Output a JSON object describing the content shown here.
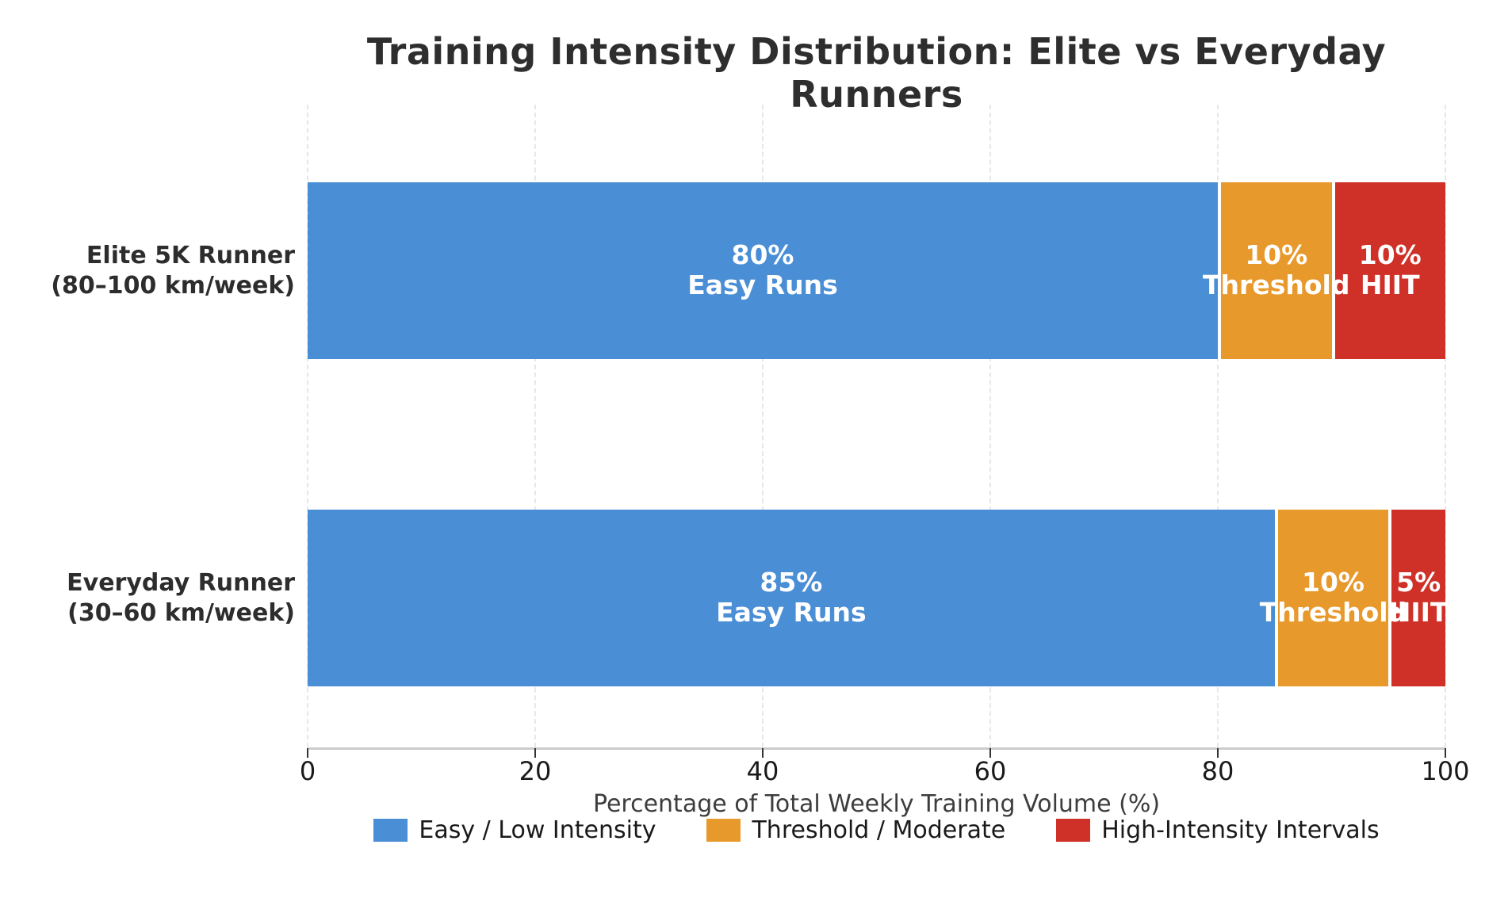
{
  "chart_data": {
    "type": "bar",
    "orientation": "horizontal",
    "stacked": true,
    "title": "Training Intensity Distribution: Elite vs Everyday Runners",
    "xlabel": "Percentage of Total Weekly Training Volume (%)",
    "xlim": [
      0,
      100
    ],
    "xticks": [
      0,
      20,
      40,
      60,
      80,
      100
    ],
    "grid": {
      "axis": "x",
      "style": "dashed",
      "color": "#e7e7e7"
    },
    "legend_position": "bottom",
    "background_color": "#ffffff",
    "categories": [
      "Elite 5K Runner (80–100 km/week)",
      "Everyday Runner (30–60 km/week)"
    ],
    "category_label_lines": [
      [
        "Elite 5K Runner",
        "(80–100 km/week)"
      ],
      [
        "Everyday Runner",
        "(30–60 km/week)"
      ]
    ],
    "series": [
      {
        "name": "Easy / Low Intensity",
        "color": "#4A8ED5",
        "values": [
          80,
          85
        ]
      },
      {
        "name": "Threshold / Moderate",
        "color": "#E8992B",
        "values": [
          10,
          10
        ]
      },
      {
        "name": "High-Intensity Intervals",
        "color": "#CF3028",
        "values": [
          10,
          5
        ]
      }
    ],
    "segment_labels": [
      [
        [
          "80%",
          "Easy Runs"
        ],
        [
          "10%",
          "Threshold"
        ],
        [
          "10%",
          "HIIT"
        ]
      ],
      [
        [
          "85%",
          "Easy Runs"
        ],
        [
          "10%",
          "Threshold"
        ],
        [
          "5%",
          "HIIT"
        ]
      ]
    ]
  }
}
